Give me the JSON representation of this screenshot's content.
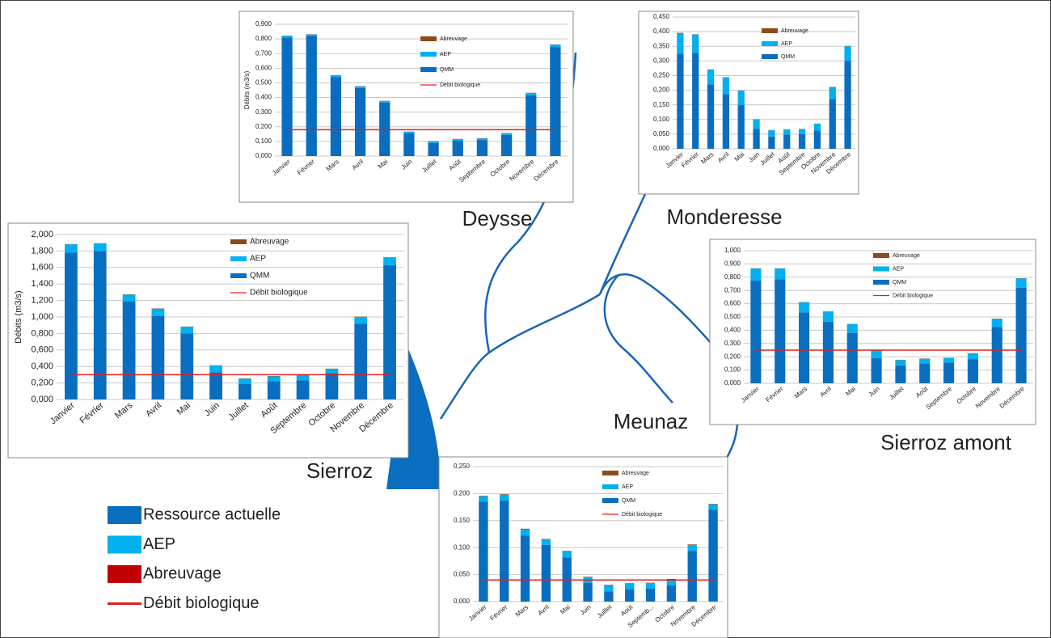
{
  "chart_data": [
    {
      "type": "bar",
      "title": "Deysse",
      "y_label": "Débits (m3/s)",
      "categories": [
        "Janvier",
        "Février",
        "Mars",
        "Avril",
        "Mai",
        "Juin",
        "Juillet",
        "Août",
        "Septembre",
        "Octobre",
        "Novembre",
        "Décembre"
      ],
      "series": [
        {
          "name": "Abreuvage",
          "type": "bar",
          "color": "#8b4a1c",
          "values": [
            0.002,
            0.002,
            0.002,
            0.002,
            0.002,
            0.002,
            0.002,
            0.002,
            0.002,
            0.002,
            0.002,
            0.002
          ]
        },
        {
          "name": "AEP",
          "type": "bar",
          "color": "#00b0f0",
          "values": [
            0.01,
            0.01,
            0.01,
            0.01,
            0.01,
            0.01,
            0.01,
            0.01,
            0.01,
            0.01,
            0.015,
            0.015
          ]
        },
        {
          "name": "QMM",
          "type": "bar",
          "color": "#0a6ec0",
          "values": [
            0.81,
            0.82,
            0.54,
            0.465,
            0.365,
            0.155,
            0.09,
            0.105,
            0.11,
            0.145,
            0.415,
            0.745
          ]
        },
        {
          "name": "Débit biologique",
          "type": "line",
          "color": "#e02020",
          "values": [
            0.18,
            0.18,
            0.18,
            0.18,
            0.18,
            0.18,
            0.18,
            0.18,
            0.18,
            0.18,
            0.18,
            0.18
          ]
        }
      ],
      "ylim": [
        0,
        0.9
      ],
      "yticks": [
        {
          "value": 0,
          "label": "0,000"
        },
        {
          "value": 0.1,
          "label": "0,100"
        },
        {
          "value": 0.2,
          "label": "0,200"
        },
        {
          "value": 0.3,
          "label": "0,300"
        },
        {
          "value": 0.4,
          "label": "0,400"
        },
        {
          "value": 0.5,
          "label": "0,500"
        },
        {
          "value": 0.6,
          "label": "0,600"
        },
        {
          "value": 0.7,
          "label": "0,700"
        },
        {
          "value": 0.8,
          "label": "0,800"
        },
        {
          "value": 0.9,
          "label": "0,900"
        }
      ],
      "grid": true
    },
    {
      "type": "bar",
      "title": "Monderesse",
      "categories": [
        "Janvier",
        "Février",
        "Mars",
        "Avril",
        "Mai",
        "Juin",
        "Juillet",
        "Août",
        "Septembre",
        "Octobre",
        "Novembre",
        "Décembre"
      ],
      "series": [
        {
          "name": "Abreuvage",
          "type": "bar",
          "color": "#8b4a1c",
          "values": [
            0.001,
            0.001,
            0.001,
            0.001,
            0.001,
            0.001,
            0.001,
            0.001,
            0.001,
            0.001,
            0.001,
            0.001
          ]
        },
        {
          "name": "AEP",
          "type": "bar",
          "color": "#00b0f0",
          "values": [
            0.07,
            0.062,
            0.05,
            0.056,
            0.048,
            0.032,
            0.021,
            0.017,
            0.017,
            0.023,
            0.04,
            0.05
          ]
        },
        {
          "name": "QMM",
          "type": "bar",
          "color": "#0a6ec0",
          "values": [
            0.325,
            0.328,
            0.22,
            0.187,
            0.15,
            0.068,
            0.042,
            0.048,
            0.05,
            0.062,
            0.17,
            0.3
          ]
        }
      ],
      "ylim": [
        0,
        0.45
      ],
      "yticks": [
        {
          "value": 0,
          "label": "0,000"
        },
        {
          "value": 0.05,
          "label": "0,050"
        },
        {
          "value": 0.1,
          "label": "0,100"
        },
        {
          "value": 0.15,
          "label": "0,150"
        },
        {
          "value": 0.2,
          "label": "0,200"
        },
        {
          "value": 0.25,
          "label": "0,250"
        },
        {
          "value": 0.3,
          "label": "0,300"
        },
        {
          "value": 0.35,
          "label": "0,350"
        },
        {
          "value": 0.4,
          "label": "0,400"
        },
        {
          "value": 0.45,
          "label": "0,450"
        }
      ],
      "grid": true
    },
    {
      "type": "bar",
      "title": "Sierroz",
      "y_label": "Débits (m3/s)",
      "categories": [
        "Janvier",
        "Février",
        "Mars",
        "Avril",
        "Mai",
        "Juin",
        "Juillet",
        "Août",
        "Septembre",
        "Octobre",
        "Novembre",
        "Décembre"
      ],
      "series": [
        {
          "name": "Abreuvage",
          "type": "bar",
          "color": "#8b4a1c",
          "values": [
            0.004,
            0.004,
            0.004,
            0.004,
            0.004,
            0.004,
            0.004,
            0.004,
            0.004,
            0.004,
            0.004,
            0.004
          ]
        },
        {
          "name": "AEP",
          "type": "bar",
          "color": "#00b0f0",
          "values": [
            0.1,
            0.09,
            0.08,
            0.09,
            0.08,
            0.08,
            0.06,
            0.06,
            0.07,
            0.05,
            0.08,
            0.09
          ]
        },
        {
          "name": "QMM",
          "type": "bar",
          "color": "#0a6ec0",
          "values": [
            1.78,
            1.8,
            1.19,
            1.01,
            0.8,
            0.33,
            0.19,
            0.22,
            0.23,
            0.32,
            0.92,
            1.63
          ]
        },
        {
          "name": "Débit biologique",
          "type": "line",
          "color": "#e02020",
          "values": [
            0.3,
            0.3,
            0.3,
            0.3,
            0.3,
            0.3,
            0.3,
            0.3,
            0.3,
            0.3,
            0.3,
            0.3
          ]
        }
      ],
      "ylim": [
        0,
        2
      ],
      "yticks": [
        {
          "value": 0,
          "label": "0,000"
        },
        {
          "value": 0.2,
          "label": "0,200"
        },
        {
          "value": 0.4,
          "label": "0,400"
        },
        {
          "value": 0.6,
          "label": "0,600"
        },
        {
          "value": 0.8,
          "label": "0,800"
        },
        {
          "value": 1,
          "label": "1,000"
        },
        {
          "value": 1.2,
          "label": "1,200"
        },
        {
          "value": 1.4,
          "label": "1,400"
        },
        {
          "value": 1.6,
          "label": "1,600"
        },
        {
          "value": 1.8,
          "label": "1,800"
        },
        {
          "value": 2,
          "label": "2,000"
        }
      ],
      "grid": true
    },
    {
      "type": "bar",
      "title": "Sierroz amont",
      "categories": [
        "Janvier",
        "Février",
        "Mars",
        "Avril",
        "Mai",
        "Juin",
        "Juillet",
        "Août",
        "Septembre",
        "Octobre",
        "Novembre",
        "Décembre"
      ],
      "series": [
        {
          "name": "Abreuvage",
          "type": "bar",
          "color": "#8b4a1c",
          "values": [
            0.002,
            0.002,
            0.002,
            0.002,
            0.002,
            0.002,
            0.002,
            0.002,
            0.002,
            0.002,
            0.002,
            0.002
          ]
        },
        {
          "name": "AEP",
          "type": "bar",
          "color": "#00b0f0",
          "values": [
            0.09,
            0.08,
            0.075,
            0.075,
            0.065,
            0.06,
            0.04,
            0.035,
            0.035,
            0.045,
            0.06,
            0.07
          ]
        },
        {
          "name": "QMM",
          "type": "bar",
          "color": "#0a6ec0",
          "values": [
            0.775,
            0.785,
            0.535,
            0.465,
            0.38,
            0.19,
            0.135,
            0.15,
            0.155,
            0.18,
            0.425,
            0.72
          ]
        },
        {
          "name": "Débit biologique",
          "type": "line",
          "color": "#e02020",
          "values": [
            0.25,
            0.25,
            0.25,
            0.25,
            0.25,
            0.25,
            0.25,
            0.25,
            0.25,
            0.25,
            0.25,
            0.25
          ]
        }
      ],
      "ylim": [
        0,
        1
      ],
      "yticks": [
        {
          "value": 0,
          "label": "0,000"
        },
        {
          "value": 0.1,
          "label": "0,100"
        },
        {
          "value": 0.2,
          "label": "0,200"
        },
        {
          "value": 0.3,
          "label": "0,300"
        },
        {
          "value": 0.4,
          "label": "0,400"
        },
        {
          "value": 0.5,
          "label": "0,500"
        },
        {
          "value": 0.6,
          "label": "0,600"
        },
        {
          "value": 0.7,
          "label": "0,700"
        },
        {
          "value": 0.8,
          "label": "0,800"
        },
        {
          "value": 0.9,
          "label": "0,900"
        },
        {
          "value": 1,
          "label": "1,000"
        }
      ],
      "grid": true
    },
    {
      "type": "bar",
      "title": "Meunaz",
      "categories": [
        "Janvier",
        "Février",
        "Mars",
        "Avril",
        "Mai",
        "Juin",
        "Juillet",
        "Août",
        "Septemb...",
        "Octobre",
        "Novembre",
        "Décembre"
      ],
      "series": [
        {
          "name": "Abreuvage",
          "type": "bar",
          "color": "#8b4a1c",
          "values": [
            0.001,
            0.001,
            0.001,
            0.001,
            0.001,
            0.001,
            0.001,
            0.001,
            0.001,
            0.001,
            0.001,
            0.001
          ]
        },
        {
          "name": "AEP",
          "type": "bar",
          "color": "#00b0f0",
          "values": [
            0.01,
            0.011,
            0.012,
            0.01,
            0.011,
            0.01,
            0.011,
            0.01,
            0.01,
            0.011,
            0.011,
            0.01
          ]
        },
        {
          "name": "QMM",
          "type": "bar",
          "color": "#0a6ec0",
          "values": [
            0.185,
            0.187,
            0.122,
            0.105,
            0.082,
            0.035,
            0.019,
            0.023,
            0.024,
            0.03,
            0.094,
            0.17
          ]
        },
        {
          "name": "Débit biologique",
          "type": "line",
          "color": "#e02020",
          "values": [
            0.04,
            0.04,
            0.04,
            0.04,
            0.04,
            0.04,
            0.04,
            0.04,
            0.04,
            0.04,
            0.04,
            0.04
          ]
        }
      ],
      "ylim": [
        0,
        0.25
      ],
      "yticks": [
        {
          "value": 0,
          "label": "0,000"
        },
        {
          "value": 0.05,
          "label": "0,050"
        },
        {
          "value": 0.1,
          "label": "0,100"
        },
        {
          "value": 0.15,
          "label": "0,150"
        },
        {
          "value": 0.2,
          "label": "0,200"
        },
        {
          "value": 0.25,
          "label": "0,250"
        }
      ],
      "grid": true
    }
  ],
  "legend": {
    "items": [
      {
        "label": "Ressource actuelle",
        "color": "#0a6ec0",
        "mark": "rect"
      },
      {
        "label": "AEP",
        "color": "#00b0f0",
        "mark": "rect"
      },
      {
        "label": "Abreuvage",
        "color": "#c00000",
        "mark": "rect"
      },
      {
        "label": "Débit biologique",
        "color": "#e02020",
        "mark": "line"
      }
    ]
  }
}
